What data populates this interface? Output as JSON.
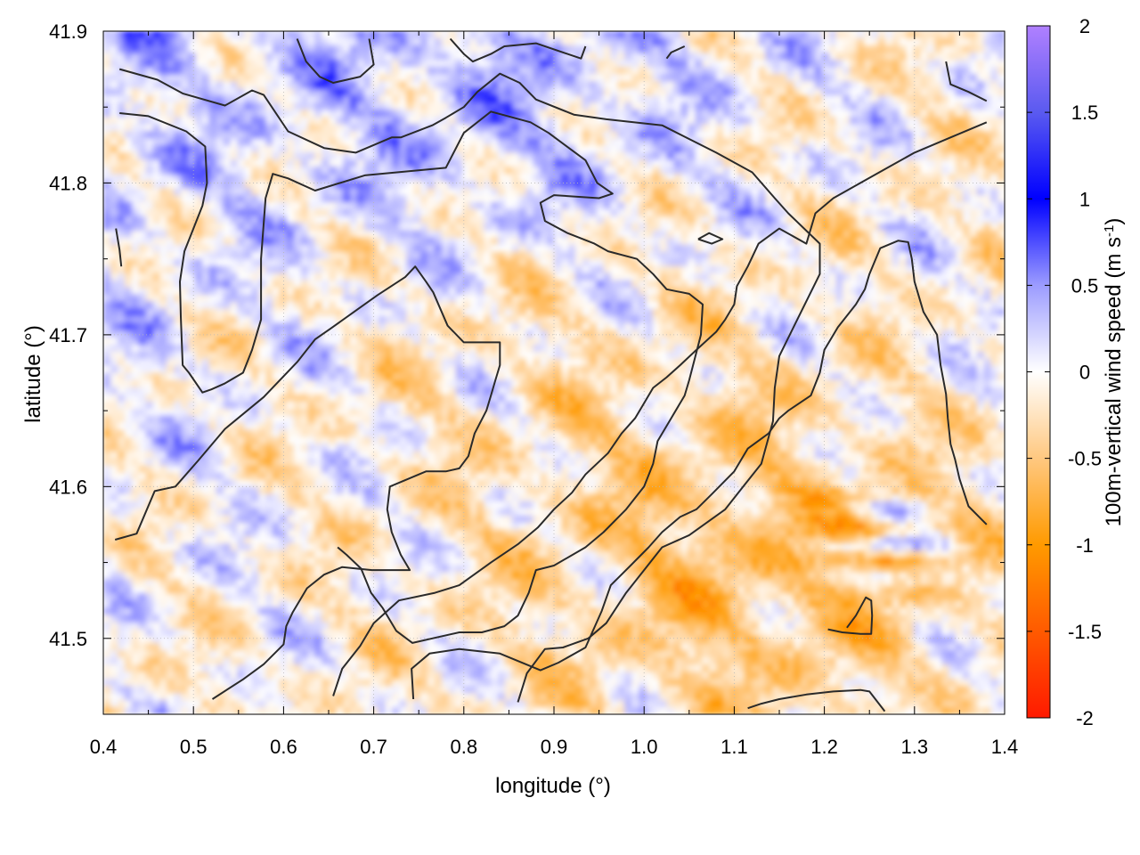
{
  "chart_data": {
    "type": "heatmap",
    "title": "",
    "xlabel": "longitude (°)",
    "ylabel": "latitude (°)",
    "xlim": [
      0.4,
      1.4
    ],
    "ylim": [
      41.45,
      41.9
    ],
    "xticks": [
      {
        "value": 0.4,
        "label": "0.4"
      },
      {
        "value": 0.5,
        "label": "0.5"
      },
      {
        "value": 0.6,
        "label": "0.6"
      },
      {
        "value": 0.7,
        "label": "0.7"
      },
      {
        "value": 0.8,
        "label": "0.8"
      },
      {
        "value": 0.9,
        "label": "0.9"
      },
      {
        "value": 1.0,
        "label": "1.0"
      },
      {
        "value": 1.1,
        "label": "1.1"
      },
      {
        "value": 1.2,
        "label": "1.2"
      },
      {
        "value": 1.3,
        "label": "1.3"
      },
      {
        "value": 1.4,
        "label": "1.4"
      }
    ],
    "yticks": [
      {
        "value": 41.5,
        "label": "41.5"
      },
      {
        "value": 41.6,
        "label": "41.6"
      },
      {
        "value": 41.7,
        "label": "41.7"
      },
      {
        "value": 41.8,
        "label": "41.8"
      },
      {
        "value": 41.9,
        "label": "41.9"
      }
    ],
    "grid": true,
    "colorbar": {
      "label": "100m-vertical wind speed (m s-1)",
      "label_main": "100m-vertical wind speed (m s",
      "label_sup": "-1",
      "label_end": ")",
      "range": [
        -2,
        2
      ],
      "ticks": [
        {
          "value": 2,
          "label": "2"
        },
        {
          "value": 1.5,
          "label": "1.5"
        },
        {
          "value": 1,
          "label": "1"
        },
        {
          "value": 0.5,
          "label": "0.5"
        },
        {
          "value": 0,
          "label": "0"
        },
        {
          "value": -0.5,
          "label": "-0.5"
        },
        {
          "value": -1,
          "label": "-1"
        },
        {
          "value": -1.5,
          "label": "-1.5"
        },
        {
          "value": -2,
          "label": "-2"
        }
      ],
      "colors": [
        {
          "value": -2,
          "color": "#ff1a00"
        },
        {
          "value": -1.5,
          "color": "#ff5a00"
        },
        {
          "value": -1,
          "color": "#ff9a00"
        },
        {
          "value": -0.5,
          "color": "#ffc880"
        },
        {
          "value": 0,
          "color": "#ffffff"
        },
        {
          "value": 0.5,
          "color": "#9c9cff"
        },
        {
          "value": 1,
          "color": "#0000ff"
        },
        {
          "value": 1.5,
          "color": "#5a5af0"
        },
        {
          "value": 2,
          "color": "#b080ff"
        }
      ]
    },
    "contour_color": "#2a2a2a",
    "contours": [
      [
        [
          0.418,
          41.875
        ],
        [
          0.46,
          41.868
        ],
        [
          0.488,
          41.859
        ],
        [
          0.535,
          41.851
        ],
        [
          0.565,
          41.861
        ],
        [
          0.578,
          41.858
        ],
        [
          0.605,
          41.834
        ],
        [
          0.645,
          41.823
        ],
        [
          0.68,
          41.82
        ],
        [
          0.72,
          41.83
        ],
        [
          0.73,
          41.83
        ],
        [
          0.765,
          41.838
        ],
        [
          0.78,
          41.843
        ],
        [
          0.8,
          41.85
        ],
        [
          0.815,
          41.86
        ],
        [
          0.84,
          41.872
        ],
        [
          0.862,
          41.866
        ],
        [
          0.88,
          41.855
        ],
        [
          0.922,
          41.845
        ],
        [
          0.958,
          41.842
        ],
        [
          1.02,
          41.838
        ],
        [
          1.08,
          41.82
        ],
        [
          1.12,
          41.807
        ],
        [
          1.145,
          41.79
        ],
        [
          1.16,
          41.78
        ],
        [
          1.195,
          41.76
        ],
        [
          1.195,
          41.74
        ],
        [
          1.17,
          41.71
        ],
        [
          1.15,
          41.686
        ],
        [
          1.145,
          41.665
        ],
        [
          1.143,
          41.643
        ],
        [
          1.13,
          41.615
        ],
        [
          1.11,
          41.6
        ],
        [
          1.09,
          41.585
        ],
        [
          1.05,
          41.568
        ],
        [
          1.02,
          41.56
        ],
        [
          1.0,
          41.545
        ],
        [
          0.98,
          41.53
        ],
        [
          0.958,
          41.51
        ],
        [
          0.938,
          41.5
        ],
        [
          0.91,
          41.494
        ],
        [
          0.89,
          41.493
        ],
        [
          0.87,
          41.477
        ],
        [
          0.86,
          41.458
        ]
      ],
      [
        [
          0.418,
          41.846
        ],
        [
          0.45,
          41.844
        ],
        [
          0.492,
          41.834
        ],
        [
          0.513,
          41.824
        ],
        [
          0.515,
          41.8
        ],
        [
          0.51,
          41.785
        ],
        [
          0.5,
          41.77
        ],
        [
          0.49,
          41.755
        ],
        [
          0.485,
          41.735
        ],
        [
          0.486,
          41.712
        ],
        [
          0.488,
          41.68
        ],
        [
          0.495,
          41.675
        ],
        [
          0.51,
          41.662
        ],
        [
          0.52,
          41.664
        ],
        [
          0.535,
          41.668
        ],
        [
          0.555,
          41.675
        ],
        [
          0.565,
          41.69
        ],
        [
          0.575,
          41.71
        ],
        [
          0.575,
          41.75
        ],
        [
          0.58,
          41.79
        ],
        [
          0.588,
          41.806
        ],
        [
          0.605,
          41.803
        ],
        [
          0.635,
          41.795
        ],
        [
          0.69,
          41.805
        ],
        [
          0.78,
          41.81
        ],
        [
          0.8,
          41.833
        ],
        [
          0.83,
          41.847
        ],
        [
          0.874,
          41.84
        ],
        [
          0.894,
          41.833
        ],
        [
          0.935,
          41.815
        ],
        [
          0.948,
          41.8
        ],
        [
          0.965,
          41.793
        ],
        [
          0.95,
          41.79
        ],
        [
          0.9,
          41.792
        ],
        [
          0.885,
          41.787
        ],
        [
          0.89,
          41.775
        ],
        [
          0.915,
          41.767
        ],
        [
          0.945,
          41.76
        ],
        [
          0.96,
          41.755
        ],
        [
          0.992,
          41.75
        ],
        [
          1.01,
          41.74
        ],
        [
          1.025,
          41.73
        ],
        [
          1.05,
          41.727
        ],
        [
          1.065,
          41.72
        ],
        [
          1.063,
          41.7
        ],
        [
          1.05,
          41.67
        ],
        [
          1.045,
          41.66
        ],
        [
          1.03,
          41.645
        ],
        [
          1.015,
          41.63
        ],
        [
          1.01,
          41.615
        ],
        [
          1.0,
          41.6
        ],
        [
          0.98,
          41.585
        ],
        [
          0.955,
          41.57
        ],
        [
          0.935,
          41.56
        ],
        [
          0.9,
          41.548
        ],
        [
          0.88,
          41.545
        ],
        [
          0.872,
          41.53
        ],
        [
          0.86,
          41.515
        ],
        [
          0.845,
          41.508
        ],
        [
          0.82,
          41.504
        ],
        [
          0.795,
          41.504
        ],
        [
          0.765,
          41.5
        ],
        [
          0.743,
          41.497
        ],
        [
          0.725,
          41.505
        ],
        [
          0.71,
          41.52
        ],
        [
          0.697,
          41.53
        ],
        [
          0.686,
          41.546
        ],
        [
          0.67,
          41.555
        ],
        [
          0.66,
          41.56
        ]
      ],
      [
        [
          0.413,
          41.565
        ],
        [
          0.437,
          41.569
        ],
        [
          0.457,
          41.597
        ],
        [
          0.48,
          41.6
        ],
        [
          0.505,
          41.617
        ],
        [
          0.535,
          41.638
        ],
        [
          0.578,
          41.659
        ],
        [
          0.615,
          41.682
        ],
        [
          0.635,
          41.697
        ],
        [
          0.652,
          41.704
        ],
        [
          0.678,
          41.715
        ],
        [
          0.704,
          41.726
        ],
        [
          0.735,
          41.738
        ],
        [
          0.746,
          41.745
        ],
        [
          0.758,
          41.735
        ],
        [
          0.766,
          41.728
        ],
        [
          0.782,
          41.706
        ],
        [
          0.8,
          41.695
        ],
        [
          0.84,
          41.695
        ],
        [
          0.84,
          41.68
        ],
        [
          0.835,
          41.67
        ],
        [
          0.83,
          41.66
        ],
        [
          0.825,
          41.65
        ],
        [
          0.812,
          41.635
        ],
        [
          0.805,
          41.62
        ],
        [
          0.795,
          41.612
        ],
        [
          0.78,
          41.61
        ],
        [
          0.758,
          41.61
        ],
        [
          0.718,
          41.6
        ],
        [
          0.715,
          41.585
        ],
        [
          0.72,
          41.57
        ],
        [
          0.73,
          41.555
        ],
        [
          0.74,
          41.545
        ],
        [
          0.698,
          41.545
        ],
        [
          0.665,
          41.547
        ],
        [
          0.645,
          41.542
        ],
        [
          0.626,
          41.533
        ],
        [
          0.61,
          41.517
        ],
        [
          0.603,
          41.508
        ],
        [
          0.6,
          41.496
        ],
        [
          0.578,
          41.483
        ],
        [
          0.555,
          41.473
        ],
        [
          0.521,
          41.46
        ]
      ],
      [
        [
          0.744,
          41.46
        ],
        [
          0.742,
          41.48
        ],
        [
          0.762,
          41.49
        ],
        [
          0.795,
          41.493
        ],
        [
          0.84,
          41.49
        ],
        [
          0.885,
          41.479
        ],
        [
          0.905,
          41.484
        ],
        [
          0.935,
          41.494
        ],
        [
          0.953,
          41.518
        ],
        [
          0.963,
          41.535
        ],
        [
          0.985,
          41.548
        ],
        [
          1.005,
          41.56
        ],
        [
          1.02,
          41.57
        ],
        [
          1.04,
          41.58
        ],
        [
          1.058,
          41.585
        ],
        [
          1.075,
          41.595
        ],
        [
          1.1,
          41.61
        ],
        [
          1.115,
          41.625
        ],
        [
          1.138,
          41.635
        ],
        [
          1.15,
          41.645
        ],
        [
          1.16,
          41.65
        ],
        [
          1.185,
          41.66
        ],
        [
          1.195,
          41.675
        ],
        [
          1.2,
          41.69
        ],
        [
          1.215,
          41.705
        ],
        [
          1.235,
          41.72
        ],
        [
          1.245,
          41.73
        ],
        [
          1.25,
          41.74
        ],
        [
          1.262,
          41.757
        ],
        [
          1.282,
          41.762
        ],
        [
          1.293,
          41.761
        ],
        [
          1.297,
          41.75
        ],
        [
          1.3,
          41.735
        ],
        [
          1.31,
          41.715
        ],
        [
          1.325,
          41.7
        ],
        [
          1.329,
          41.68
        ],
        [
          1.335,
          41.661
        ],
        [
          1.337,
          41.645
        ],
        [
          1.34,
          41.628
        ],
        [
          1.345,
          41.618
        ],
        [
          1.35,
          41.605
        ],
        [
          1.36,
          41.587
        ],
        [
          1.38,
          41.575
        ]
      ],
      [
        [
          0.655,
          41.462
        ],
        [
          0.665,
          41.48
        ],
        [
          0.685,
          41.495
        ],
        [
          0.7,
          41.51
        ],
        [
          0.728,
          41.525
        ],
        [
          0.768,
          41.53
        ],
        [
          0.795,
          41.535
        ],
        [
          0.83,
          41.55
        ],
        [
          0.86,
          41.562
        ],
        [
          0.882,
          41.573
        ],
        [
          0.9,
          41.585
        ],
        [
          0.92,
          41.596
        ],
        [
          0.935,
          41.608
        ],
        [
          0.96,
          41.622
        ],
        [
          0.975,
          41.635
        ],
        [
          0.99,
          41.645
        ],
        [
          1.0,
          41.655
        ],
        [
          1.01,
          41.665
        ],
        [
          1.025,
          41.672
        ],
        [
          1.04,
          41.68
        ],
        [
          1.058,
          41.69
        ],
        [
          1.08,
          41.702
        ],
        [
          1.09,
          41.71
        ],
        [
          1.1,
          41.72
        ],
        [
          1.103,
          41.732
        ],
        [
          1.115,
          41.745
        ],
        [
          1.127,
          41.76
        ],
        [
          1.15,
          41.77
        ],
        [
          1.18,
          41.76
        ],
        [
          1.19,
          41.78
        ],
        [
          1.21,
          41.79
        ],
        [
          1.24,
          41.8
        ],
        [
          1.27,
          41.81
        ],
        [
          1.3,
          41.82
        ],
        [
          1.34,
          41.83
        ],
        [
          1.38,
          41.84
        ]
      ],
      [
        [
          1.06,
          41.763
        ],
        [
          1.072,
          41.767
        ],
        [
          1.087,
          41.763
        ],
        [
          1.075,
          41.76
        ],
        [
          1.06,
          41.763
        ]
      ],
      [
        [
          0.414,
          41.77
        ],
        [
          0.418,
          41.756
        ],
        [
          0.42,
          41.745
        ]
      ],
      [
        [
          1.204,
          41.506
        ],
        [
          1.22,
          41.504
        ],
        [
          1.24,
          41.503
        ],
        [
          1.252,
          41.503
        ],
        [
          1.253,
          41.515
        ],
        [
          1.252,
          41.525
        ],
        [
          1.246,
          41.527
        ],
        [
          1.235,
          41.515
        ],
        [
          1.225,
          41.507
        ]
      ],
      [
        [
          1.115,
          41.454
        ],
        [
          1.13,
          41.457
        ],
        [
          1.15,
          41.46
        ],
        [
          1.18,
          41.463
        ],
        [
          1.21,
          41.465
        ],
        [
          1.24,
          41.466
        ],
        [
          1.25,
          41.465
        ],
        [
          1.267,
          41.452
        ]
      ],
      [
        [
          0.615,
          41.895
        ],
        [
          0.625,
          41.88
        ],
        [
          0.64,
          41.87
        ],
        [
          0.655,
          41.866
        ],
        [
          0.685,
          41.87
        ],
        [
          0.7,
          41.878
        ],
        [
          0.695,
          41.895
        ]
      ],
      [
        [
          0.785,
          41.895
        ],
        [
          0.8,
          41.885
        ],
        [
          0.81,
          41.88
        ],
        [
          0.83,
          41.885
        ],
        [
          0.845,
          41.89
        ],
        [
          0.88,
          41.892
        ],
        [
          0.915,
          41.885
        ],
        [
          0.93,
          41.882
        ],
        [
          0.935,
          41.89
        ]
      ],
      [
        [
          1.025,
          41.882
        ],
        [
          1.03,
          41.886
        ],
        [
          1.045,
          41.89
        ]
      ],
      [
        [
          1.335,
          41.88
        ],
        [
          1.34,
          41.865
        ],
        [
          1.36,
          41.86
        ],
        [
          1.38,
          41.854
        ]
      ]
    ]
  }
}
